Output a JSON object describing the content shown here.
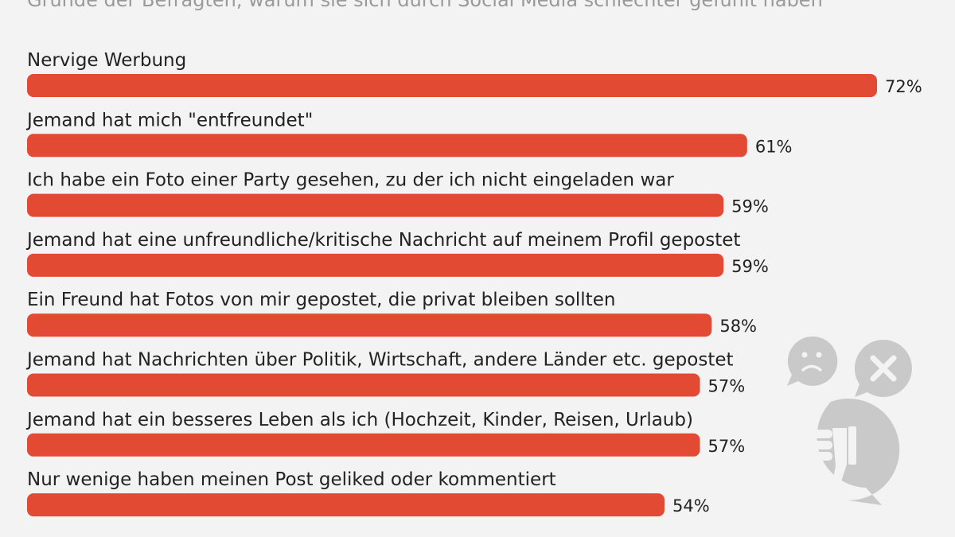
{
  "subtitle": "Gründe der Befragten, warum sie sich durch Social Media schlechter gefühlt haben",
  "colors": {
    "bar": "#e34a33",
    "background": "#f3f3f3",
    "icon": "#c9c9c9"
  },
  "icons": [
    "sad-face-bubble-icon",
    "x-bubble-icon",
    "thumbs-down-bubble-icon"
  ],
  "chart_data": {
    "type": "bar",
    "orientation": "horizontal",
    "categories": [
      "Nervige Werbung",
      "Jemand hat mich \"entfreundet\"",
      "Ich habe ein Foto einer Party gesehen, zu der ich nicht eingeladen war",
      "Jemand hat eine unfreundliche/kritische Nachricht auf meinem Profil gepostet",
      "Ein Freund hat Fotos von mir gepostet, die privat bleiben sollten",
      "Jemand hat Nachrichten über Politik, Wirtschaft, andere Länder etc. gepostet",
      "Jemand hat ein besseres Leben als ich (Hochzeit, Kinder, Reisen, Urlaub)",
      "Nur wenige haben meinen Post geliked oder kommentiert"
    ],
    "values": [
      72,
      61,
      59,
      59,
      58,
      57,
      57,
      54
    ],
    "value_labels": [
      "72%",
      "61%",
      "59%",
      "59%",
      "58%",
      "57%",
      "57%",
      "54%"
    ],
    "unit": "%",
    "grid": false,
    "legend": "none"
  }
}
